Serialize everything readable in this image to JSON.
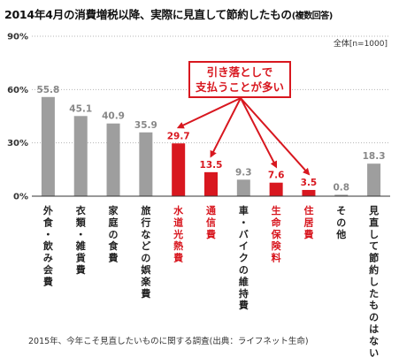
{
  "title": {
    "main": "2014年4月の消費増税以降、実際に見直して節約したもの",
    "sub": "(複数回答)"
  },
  "note": "全体[n=1000]",
  "callout": {
    "line1": "引き落としで",
    "line2": "支払うことが多い"
  },
  "source": "2015年、今年こそ見直したいものに関する調査(出典：ライフネット生命)",
  "colors": {
    "gray": "#9e9e9e",
    "red": "#d8171f",
    "gray_label": "#888888",
    "axis": "#333333"
  },
  "chart_data": {
    "type": "bar",
    "title": "2014年4月の消費増税以降、実際に見直して節約したもの(複数回答)",
    "categories": [
      "外食・飲み会費",
      "衣類・雑貨費",
      "家庭の食費",
      "旅行などの娯楽費",
      "水道光熱費",
      "通信費",
      "車・バイクの維持費",
      "生命保険料",
      "住居費",
      "その他",
      "見直して節約したものはない"
    ],
    "values": [
      55.8,
      45.1,
      40.9,
      35.9,
      29.7,
      13.5,
      9.3,
      7.6,
      3.5,
      0.8,
      18.3
    ],
    "highlighted": [
      false,
      false,
      false,
      false,
      true,
      true,
      false,
      true,
      true,
      false,
      false
    ],
    "value_labels": [
      "55.8",
      "45.1",
      "40.9",
      "35.9",
      "29.7",
      "13.5",
      "9.3",
      "7.6",
      "3.5",
      "0.8",
      "18.3"
    ],
    "ylim": [
      0,
      90
    ],
    "yticks": [
      "0%",
      "30%",
      "60%",
      "90%"
    ],
    "ytick_values": [
      0,
      30,
      60,
      90
    ],
    "grid": "dotted horizontal",
    "annotation": {
      "text": "引き落としで支払うことが多い",
      "points_to": [
        "水道光熱費",
        "通信費",
        "生命保険料",
        "住居費"
      ]
    }
  }
}
